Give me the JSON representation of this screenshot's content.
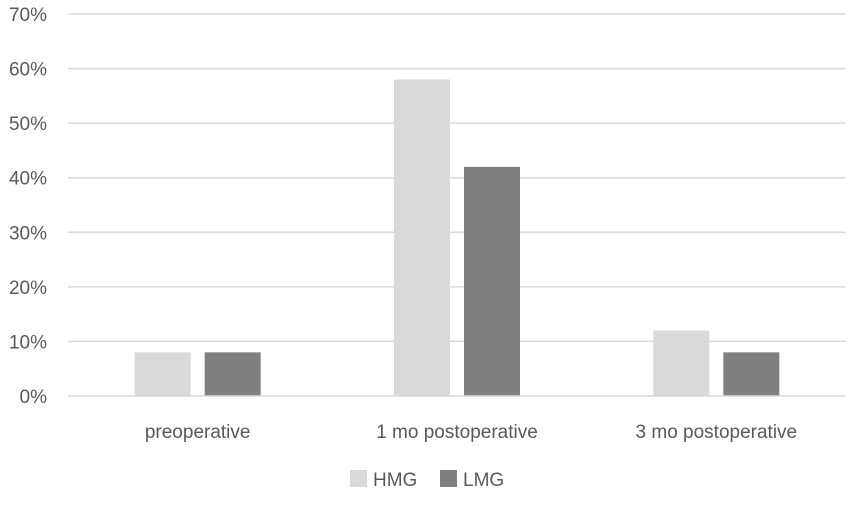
{
  "chart_data": {
    "type": "bar",
    "categories": [
      "preoperative",
      "1 mo postoperative",
      "3 mo postoperative"
    ],
    "series": [
      {
        "name": "HMG",
        "values": [
          8,
          58,
          12
        ],
        "color": "#d9d9d9"
      },
      {
        "name": "LMG",
        "values": [
          8,
          42,
          8
        ],
        "color": "#7f7f7f"
      }
    ],
    "ylim": [
      0,
      70
    ],
    "yticks": [
      0,
      10,
      20,
      30,
      40,
      50,
      60,
      70
    ],
    "y_tick_format": "{v}%",
    "grid": true,
    "grid_color": "#d9d9d9",
    "legend_position": "bottom",
    "title": "",
    "xlabel": "",
    "ylabel": ""
  }
}
